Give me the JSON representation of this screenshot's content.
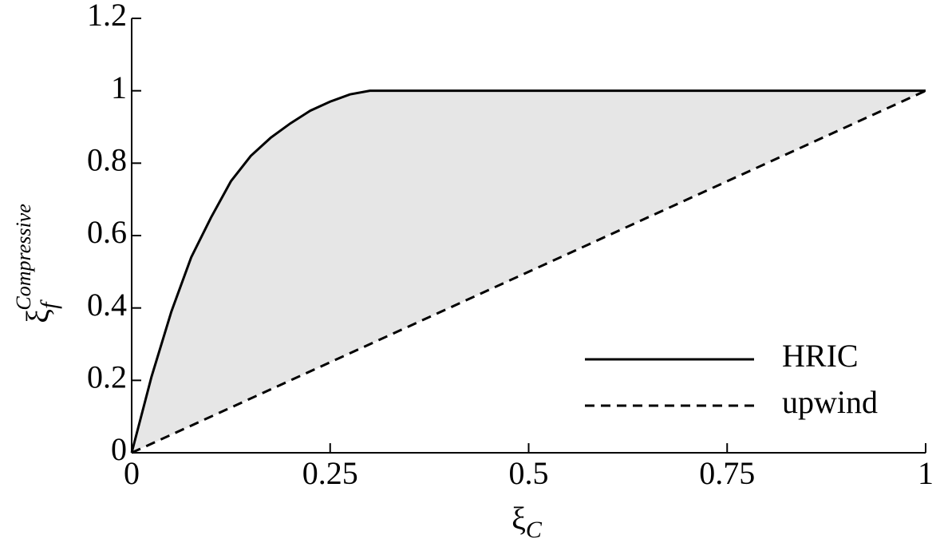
{
  "chart_data": {
    "type": "line",
    "x_label": {
      "base": "ξ",
      "subscript": "C"
    },
    "y_label": {
      "base": "ξ",
      "subscript": "f",
      "superscript": "Compressive"
    },
    "xlim": [
      0,
      1
    ],
    "ylim": [
      0,
      1.2
    ],
    "xticks": [
      0,
      0.25,
      0.5,
      0.75,
      1
    ],
    "yticks": [
      0,
      0.2,
      0.4,
      0.6,
      0.8,
      1,
      1.2
    ],
    "legend": "lower right",
    "fill_between": "#e6e6e6",
    "series": [
      {
        "name": "HRIC",
        "color": "#000000",
        "dash": "solid",
        "x": [
          0,
          0.025,
          0.05,
          0.075,
          0.1,
          0.125,
          0.15,
          0.175,
          0.2,
          0.225,
          0.25,
          0.275,
          0.3,
          1
        ],
        "values": [
          0,
          0.21,
          0.39,
          0.54,
          0.65,
          0.75,
          0.82,
          0.87,
          0.91,
          0.945,
          0.97,
          0.99,
          1,
          1
        ]
      },
      {
        "name": "upwind",
        "color": "#000000",
        "dash": "dashed",
        "x": [
          0,
          1
        ],
        "values": [
          0,
          1
        ]
      }
    ]
  }
}
